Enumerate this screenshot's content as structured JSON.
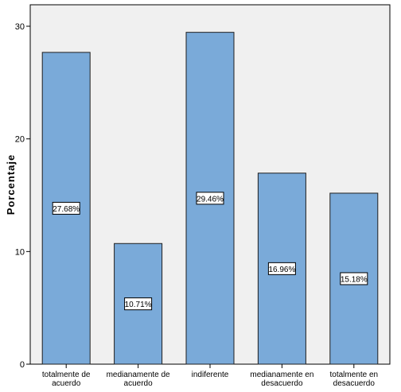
{
  "chart_data": {
    "type": "bar",
    "ylabel": "Porcentaje",
    "ylim": [
      0,
      30
    ],
    "yticks": [
      0,
      10,
      20,
      30
    ],
    "grid": false,
    "categories": [
      [
        "totalmente de",
        "acuerdo"
      ],
      [
        "medianamente de",
        "acuerdo"
      ],
      [
        "indiferente"
      ],
      [
        "medianamente en",
        "desacuerdo"
      ],
      [
        "totalmente en",
        "desacuerdo"
      ]
    ],
    "values": [
      27.68,
      10.71,
      29.46,
      16.96,
      15.18
    ],
    "data_labels": [
      "27.68%",
      "10.71%",
      "29.46%",
      "16.96%",
      "15.18%"
    ],
    "colors": {
      "bar_fill": "#7aaad9",
      "bar_stroke": "#1f1f1f",
      "plot_background": "#f0f0f0"
    }
  }
}
